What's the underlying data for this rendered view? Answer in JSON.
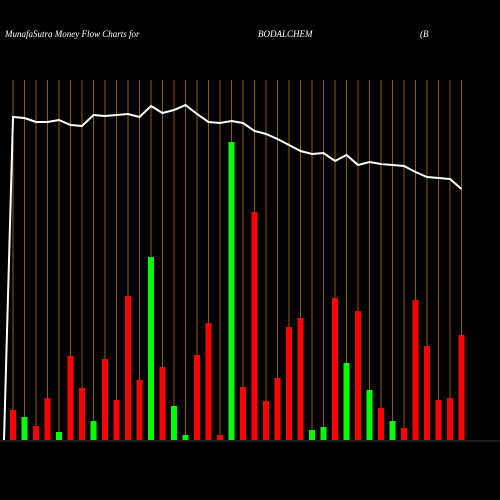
{
  "chart_data": {
    "type": "bar",
    "title": "MunafaSutra  Money Flow  Charts for",
    "subtitle": "BODALCHEM",
    "annotation": "(B",
    "categories": [
      null,
      null,
      null,
      null,
      null,
      null,
      null,
      null,
      null,
      null,
      null,
      null,
      null,
      null,
      null,
      null,
      null,
      null,
      null,
      null,
      null,
      null,
      null,
      null,
      null,
      null,
      null,
      null,
      null,
      null,
      null,
      null,
      null,
      null,
      null,
      null,
      null,
      null,
      null,
      null
    ],
    "ylim": [
      0,
      360
    ],
    "grid": true,
    "series": [
      {
        "name": "Money Flow",
        "colors": [
          "#ff0000",
          "#00ff00",
          "#ff0000",
          "#ff0000",
          "#00ff00",
          "#ff0000",
          "#ff0000",
          "#00ff00",
          "#ff0000",
          "#ff0000",
          "#ff0000",
          "#ff0000",
          "#00ff00",
          "#ff0000",
          "#00ff00",
          "#00ff00",
          "#ff0000",
          "#ff0000",
          "#ff0000",
          "#00ff00",
          "#ff0000",
          "#ff0000",
          "#ff0000",
          "#ff0000",
          "#ff0000",
          "#ff0000",
          "#00ff00",
          "#00ff00",
          "#ff0000",
          "#00ff00",
          "#ff0000",
          "#00ff00",
          "#ff0000",
          "#00ff00",
          "#ff0000",
          "#ff0000",
          "#ff0000",
          "#ff0000",
          "#ff0000",
          "#ff0000"
        ],
        "values": [
          30,
          23,
          14,
          42,
          8,
          84,
          52,
          19,
          81,
          40,
          144,
          60,
          183,
          73,
          34,
          5,
          85,
          117,
          5,
          298,
          53,
          228,
          39,
          62,
          113,
          122,
          10,
          13,
          142,
          77,
          129,
          50,
          32,
          19,
          12,
          140,
          94,
          40,
          42,
          105
        ]
      },
      {
        "name": "Price",
        "color": "#ffffff",
        "type": "line",
        "values": [
          323,
          322,
          318,
          318,
          320,
          315,
          314,
          325,
          324,
          325,
          326,
          323,
          334,
          327,
          330,
          335,
          326,
          318,
          317,
          319,
          317,
          309,
          306,
          301,
          295,
          289,
          286,
          287,
          279,
          285,
          275,
          278,
          276,
          275,
          274,
          268,
          263,
          262,
          261,
          251
        ]
      }
    ]
  }
}
